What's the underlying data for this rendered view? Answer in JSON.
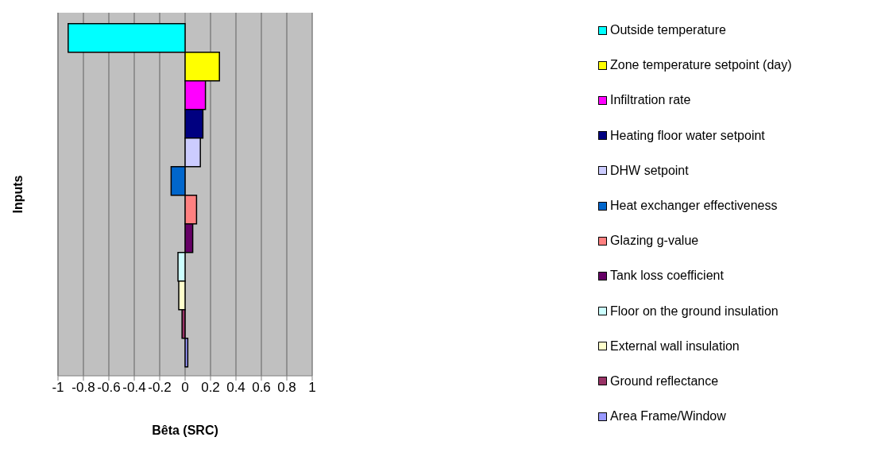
{
  "chart_data": {
    "type": "bar",
    "orientation": "horizontal",
    "xlabel": "Bêta (SRC)",
    "ylabel": "Inputs",
    "categories": [
      null
    ],
    "series": [
      {
        "name": "Outside temperature",
        "color": "#00ffff",
        "values": [
          -0.92
        ]
      },
      {
        "name": "Zone temperature setpoint (day)",
        "color": "#ffff00",
        "values": [
          0.27
        ]
      },
      {
        "name": "Infiltration rate",
        "color": "#ff00ff",
        "values": [
          0.16
        ]
      },
      {
        "name": "Heating floor water setpoint",
        "color": "#000080",
        "values": [
          0.14
        ]
      },
      {
        "name": "DHW setpoint",
        "color": "#ccccff",
        "values": [
          0.12
        ]
      },
      {
        "name": "Heat exchanger effectiveness",
        "color": "#0066cc",
        "values": [
          -0.11
        ]
      },
      {
        "name": "Glazing g-value",
        "color": "#ff8080",
        "values": [
          0.09
        ]
      },
      {
        "name": "Tank loss coefficient",
        "color": "#660066",
        "values": [
          0.06
        ]
      },
      {
        "name": "Floor on the ground insulation",
        "color": "#ccffff",
        "values": [
          -0.056
        ]
      },
      {
        "name": "External wall insulation",
        "color": "#ffffcc",
        "values": [
          -0.05
        ]
      },
      {
        "name": "Ground reflectance",
        "color": "#993366",
        "values": [
          -0.024
        ]
      },
      {
        "name": "Area Frame/Window",
        "color": "#9999ff",
        "values": [
          0.021
        ]
      }
    ],
    "xlim": [
      -1,
      1
    ],
    "xticks": [
      -1,
      -0.8,
      -0.6,
      -0.4,
      -0.2,
      0,
      0.2,
      0.4,
      0.6,
      0.8,
      1
    ],
    "grid": "x",
    "legend": "right",
    "tick_labels": "x"
  }
}
